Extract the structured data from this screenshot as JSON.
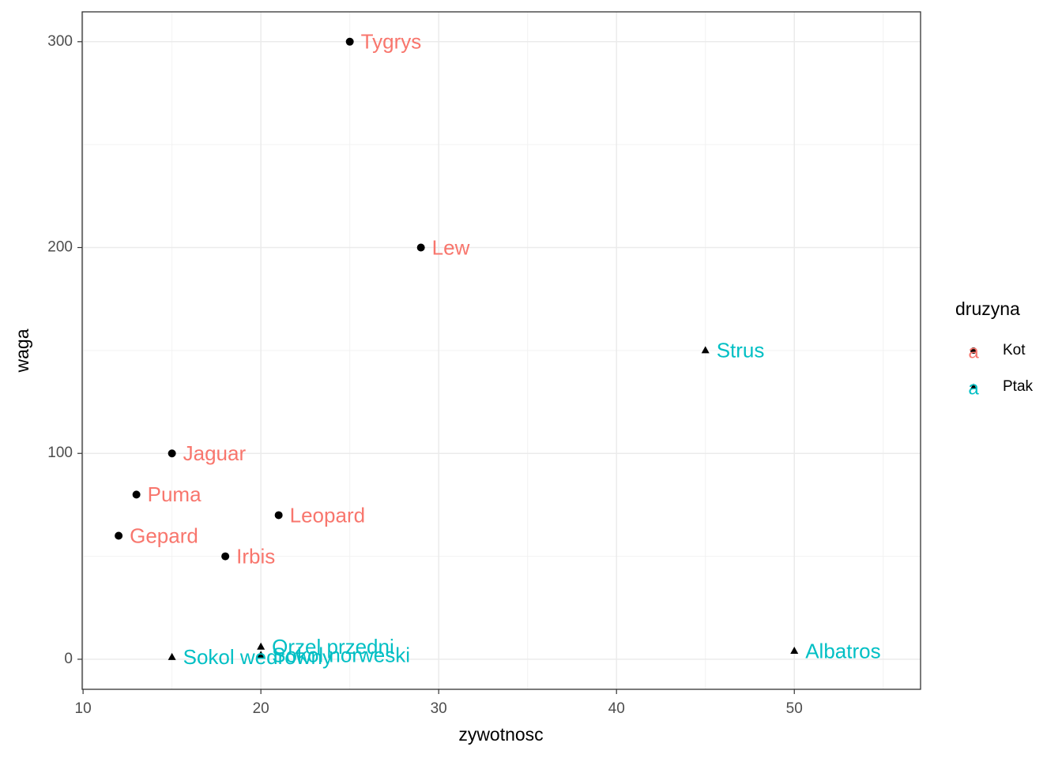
{
  "chart_data": {
    "type": "scatter",
    "x_label": "zywotnosc",
    "y_label": "waga",
    "legend_title": "druzyna",
    "legend_position": "right",
    "xlim": [
      9.95,
      57.1
    ],
    "ylim": [
      -14.6,
      314.5
    ],
    "xticks": [
      10,
      20,
      30,
      40,
      50
    ],
    "yticks": [
      0,
      100,
      200,
      300
    ],
    "grid": true,
    "point_color": "#000000",
    "series": [
      {
        "name": "Kot",
        "color": "#F8766D",
        "shape": "circle",
        "labels": [
          "Tygrys",
          "Lew",
          "Jaguar",
          "Puma",
          "Leopard",
          "Gepard",
          "Irbis"
        ],
        "x": [
          25,
          29,
          15,
          13,
          21,
          12,
          18
        ],
        "values": [
          300,
          200,
          100,
          80,
          70,
          60,
          50
        ]
      },
      {
        "name": "Ptak",
        "color": "#00BFC4",
        "shape": "triangle",
        "labels": [
          "Strus",
          "Albatros",
          "Orzel przedni",
          "Sokol norweski",
          "Sokol wedrowny"
        ],
        "x": [
          45,
          50,
          20,
          20,
          15
        ],
        "values": [
          150,
          4,
          6,
          2,
          1
        ]
      }
    ]
  }
}
